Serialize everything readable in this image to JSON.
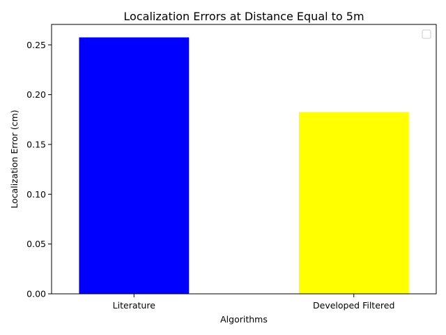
{
  "chart_data": {
    "type": "bar",
    "title": "Localization Errors at Distance Equal to 5m",
    "xlabel": "Algorithms",
    "ylabel": "Localization Error (cm)",
    "categories": [
      "Literature",
      "Developed Filtered"
    ],
    "values": [
      0.2575,
      0.1825
    ],
    "colors": [
      "#0000ff",
      "#ffff00"
    ],
    "ylim": [
      0,
      0.2705
    ],
    "yticks": [
      0.0,
      0.05,
      0.1,
      0.15,
      0.2,
      0.25
    ],
    "ytick_labels": [
      "0.00",
      "0.05",
      "0.10",
      "0.15",
      "0.20",
      "0.25"
    ],
    "legend": {
      "placement": "top-right",
      "entries": []
    },
    "grid": false
  }
}
